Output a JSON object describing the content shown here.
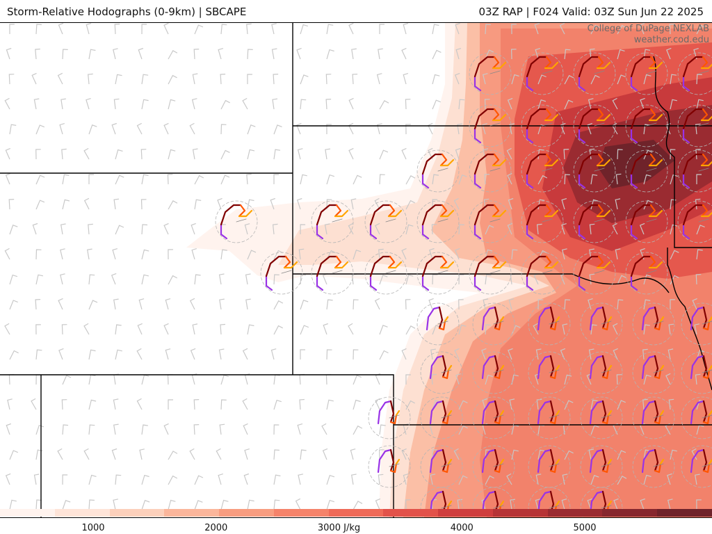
{
  "header": {
    "title_left": "Storm-Relative Hodographs (0-9km) | SBCAPE",
    "title_right": "03Z RAP | F024 Valid: 03Z Sun Jun 22 2025"
  },
  "credit": {
    "line1": "College of DuPage NEXLAB",
    "line2": "weather.cod.edu"
  },
  "colorbar": {
    "colors": [
      "#fff3ee",
      "#fee4d8",
      "#fcd0bb",
      "#fbb69b",
      "#f89d80",
      "#f5836a",
      "#ef6a58",
      "#e2524a",
      "#cf3e3e",
      "#b63436",
      "#9a2b31",
      "#86272e",
      "#6f232a"
    ],
    "ticks": [
      {
        "label": "1000",
        "value": 1000
      },
      {
        "label": "2000",
        "value": 2000
      },
      {
        "label": "3000 J/kg",
        "value": 3000
      },
      {
        "label": "4000",
        "value": 4000
      },
      {
        "label": "5000",
        "value": 5000
      }
    ]
  },
  "map": {
    "hodograph_colors": {
      "low": "#9932e6",
      "mid": "#800000",
      "upper": "#ff5500",
      "top": "#ffa500"
    },
    "state_border_color": "#000000",
    "barb_color": "#c8c8c8"
  }
}
